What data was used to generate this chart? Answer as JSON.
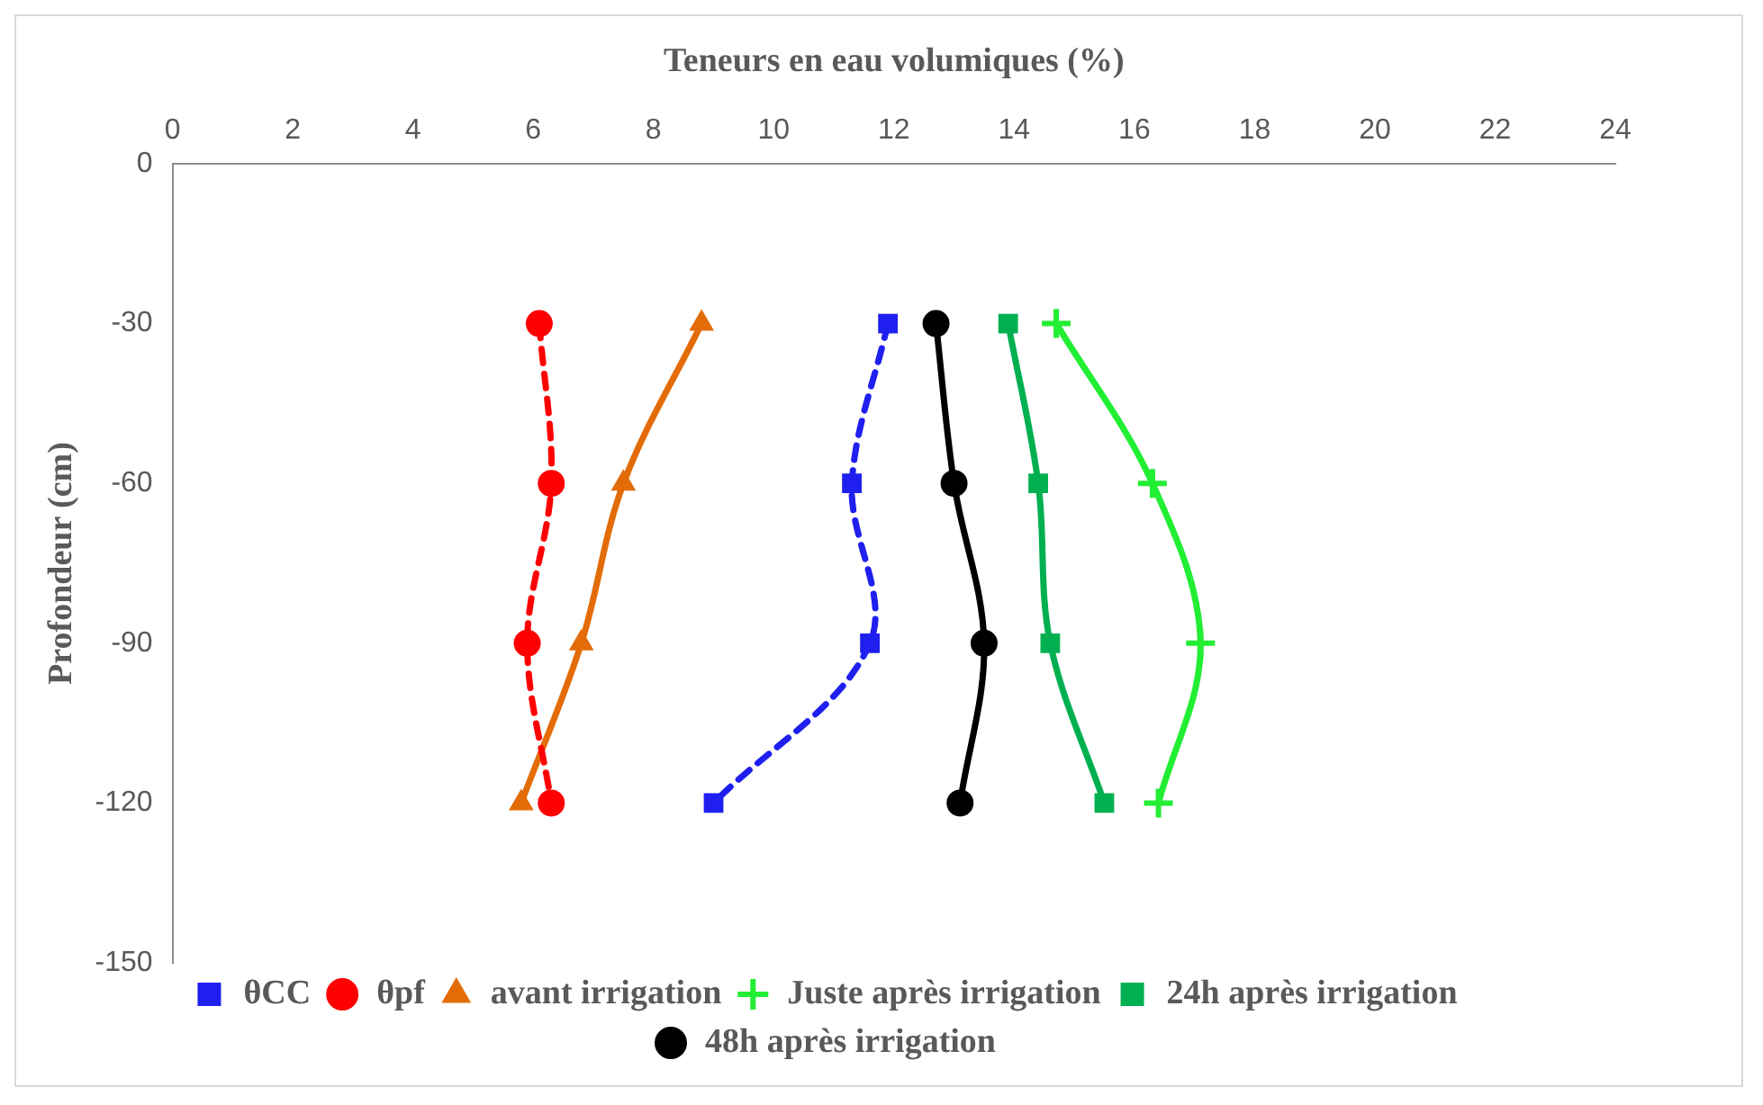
{
  "chart_data": {
    "type": "line",
    "xlabel": "Teneurs en eau volumiques (%)",
    "ylabel": "Profondeur (cm)",
    "xlim": [
      0,
      24
    ],
    "xticks": [
      0,
      2,
      4,
      6,
      8,
      10,
      12,
      14,
      16,
      18,
      20,
      22,
      24
    ],
    "ylim": [
      -150,
      0
    ],
    "yticks": [
      0,
      -30,
      -60,
      -90,
      -120,
      -150
    ],
    "grid": false,
    "legend": "bottom",
    "series": [
      {
        "name": "θCC",
        "color": "#1f1fef",
        "marker": "square",
        "line_style": "dashed",
        "x": [
          11.9,
          11.3,
          11.6,
          9.0
        ],
        "values": [
          -30,
          -60,
          -90,
          -120
        ]
      },
      {
        "name": "θpf",
        "color": "#ff0000",
        "marker": "circle",
        "line_style": "dashed",
        "x": [
          6.1,
          6.3,
          5.9,
          6.3
        ],
        "values": [
          -30,
          -60,
          -90,
          -120
        ]
      },
      {
        "name": "avant irrigation",
        "color": "#e36c09",
        "marker": "triangle",
        "line_style": "solid",
        "x": [
          8.8,
          7.5,
          6.8,
          5.8
        ],
        "values": [
          -30,
          -60,
          -90,
          -120
        ]
      },
      {
        "name": "Juste après irrigation",
        "color": "#22ee33",
        "marker": "cross",
        "line_style": "solid",
        "x": [
          14.7,
          16.3,
          17.1,
          16.4
        ],
        "values": [
          -30,
          -60,
          -90,
          -120
        ]
      },
      {
        "name": "24h après irrigation",
        "color": "#00b050",
        "marker": "square",
        "line_style": "solid",
        "x": [
          13.9,
          14.4,
          14.6,
          15.5
        ],
        "values": [
          -30,
          -60,
          -90,
          -120
        ]
      },
      {
        "name": "48h après irrigation",
        "color": "#000000",
        "marker": "circle",
        "line_style": "solid",
        "x": [
          12.7,
          13.0,
          13.5,
          13.1
        ],
        "values": [
          -30,
          -60,
          -90,
          -120
        ]
      }
    ]
  }
}
